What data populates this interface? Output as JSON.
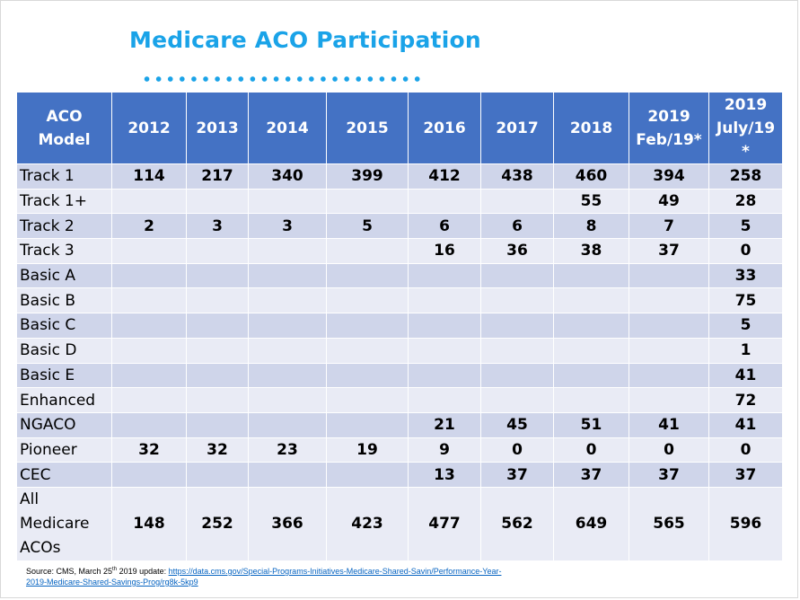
{
  "title": "Medicare ACO Participation",
  "colors": {
    "title": "#1aa3e8",
    "header_bg": "#4472c4",
    "row_dark": "#cfd5ea",
    "row_light": "#e9ebf5"
  },
  "table": {
    "headers": [
      [
        "ACO",
        "Model"
      ],
      [
        "2012"
      ],
      [
        "2013"
      ],
      [
        "2014"
      ],
      [
        "2015"
      ],
      [
        "2016"
      ],
      [
        "2017"
      ],
      [
        "2018"
      ],
      [
        "2019",
        "Feb/19*"
      ],
      [
        "2019",
        "July/19",
        "*"
      ]
    ],
    "rows": [
      {
        "label": [
          "Track 1"
        ],
        "values": [
          "114",
          "217",
          "340",
          "399",
          "412",
          "438",
          "460",
          "394",
          "258"
        ]
      },
      {
        "label": [
          "Track 1+"
        ],
        "values": [
          "",
          "",
          "",
          "",
          "",
          "",
          "55",
          "49",
          "28"
        ]
      },
      {
        "label": [
          "Track 2"
        ],
        "values": [
          "2",
          "3",
          "3",
          "5",
          "6",
          "6",
          "8",
          "7",
          "5"
        ]
      },
      {
        "label": [
          "Track 3"
        ],
        "values": [
          "",
          "",
          "",
          "",
          "16",
          "36",
          "38",
          "37",
          "0"
        ]
      },
      {
        "label": [
          "Basic A"
        ],
        "values": [
          "",
          "",
          "",
          "",
          "",
          "",
          "",
          "",
          "33"
        ]
      },
      {
        "label": [
          "Basic B"
        ],
        "values": [
          "",
          "",
          "",
          "",
          "",
          "",
          "",
          "",
          "75"
        ]
      },
      {
        "label": [
          "Basic C"
        ],
        "values": [
          "",
          "",
          "",
          "",
          "",
          "",
          "",
          "",
          "5"
        ]
      },
      {
        "label": [
          "Basic D"
        ],
        "values": [
          "",
          "",
          "",
          "",
          "",
          "",
          "",
          "",
          "1"
        ]
      },
      {
        "label": [
          "Basic E"
        ],
        "values": [
          "",
          "",
          "",
          "",
          "",
          "",
          "",
          "",
          "41"
        ]
      },
      {
        "label": [
          "Enhanced"
        ],
        "values": [
          "",
          "",
          "",
          "",
          "",
          "",
          "",
          "",
          "72"
        ]
      },
      {
        "label": [
          "NGACO"
        ],
        "values": [
          "",
          "",
          "",
          "",
          "21",
          "45",
          "51",
          "41",
          "41"
        ]
      },
      {
        "label": [
          "Pioneer"
        ],
        "values": [
          "32",
          "32",
          "23",
          "19",
          "9",
          "0",
          "0",
          "0",
          "0"
        ]
      },
      {
        "label": [
          "CEC"
        ],
        "values": [
          "",
          "",
          "",
          "",
          "13",
          "37",
          "37",
          "37",
          "37"
        ]
      },
      {
        "label": [
          "All",
          "Medicare",
          "ACOs"
        ],
        "values": [
          "148",
          "252",
          "366",
          "423",
          "477",
          "562",
          "649",
          "565",
          "596"
        ]
      }
    ]
  },
  "source": {
    "prefix": "Source: CMS, March 25",
    "sup": "th",
    "mid": " 2019 update: ",
    "link_line1": "https://data.cms.gov/Special-Programs-Initiatives-Medicare-Shared-Savin/Performance-Year-",
    "link_line2": "2019-Medicare-Shared-Savings-Prog/rg8k-5kp9"
  }
}
